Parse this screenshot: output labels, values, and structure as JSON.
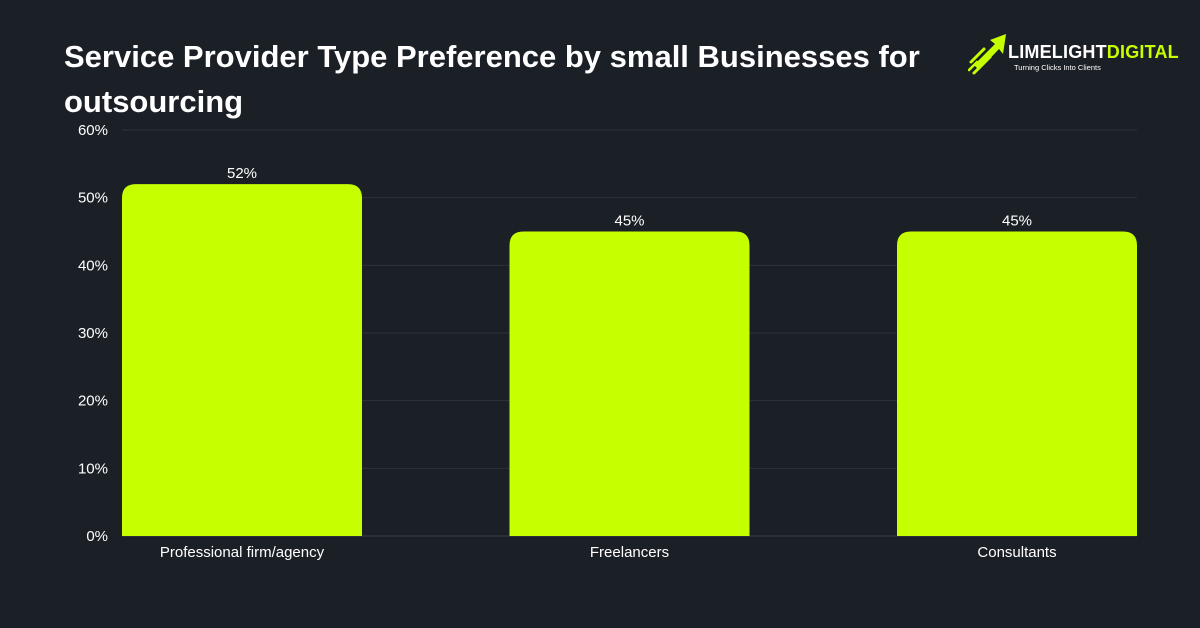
{
  "brand": {
    "name_part1": "LIMELIGHT",
    "name_part2": "DIGITAL",
    "tagline": "Turning Clicks Into Clients",
    "accent_color": "#c6ff00",
    "icon": "rocket-arrow-icon"
  },
  "colors": {
    "background": "#1b1f26",
    "bar": "#c6ff00",
    "gridline": "#2e333b",
    "text": "#ffffff"
  },
  "chart_data": {
    "type": "bar",
    "title": "Service Provider Type Preference by small Businesses for outsourcing",
    "categories": [
      "Professional firm/agency",
      "Freelancers",
      "Consultants"
    ],
    "values": [
      52,
      45,
      45
    ],
    "value_labels": [
      "52%",
      "45%",
      "45%"
    ],
    "y_ticks": [
      "0%",
      "10%",
      "20%",
      "30%",
      "40%",
      "50%",
      "60%"
    ],
    "ylim": [
      0,
      60
    ],
    "xlabel": "",
    "ylabel": "",
    "grid": true,
    "legend": "none"
  }
}
